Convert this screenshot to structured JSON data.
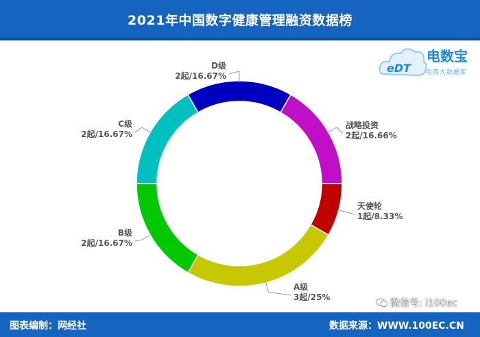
{
  "header": {
    "title": "2021年中国数字健康管理融资数据榜"
  },
  "logo": {
    "name": "电数宝",
    "subtitle": "电商大数据库",
    "mark": "eDT"
  },
  "footer": {
    "left": "图表编制：网经社",
    "right": "数据来源：WWW.100EC.CN"
  },
  "watermark": {
    "text": "微信号: i100ec"
  },
  "chart_data": {
    "type": "pie",
    "donut": true,
    "title": "",
    "slices": [
      {
        "name": "战略投资",
        "count_label": "2起/16.66%",
        "value": 16.66,
        "color": "#c010c6"
      },
      {
        "name": "天使轮",
        "count_label": "1起/8.33%",
        "value": 8.33,
        "color": "#c00000"
      },
      {
        "name": "A级",
        "count_label": "3起/25%",
        "value": 25,
        "color": "#c8c800"
      },
      {
        "name": "B级",
        "count_label": "2起/16.67%",
        "value": 16.67,
        "color": "#00c800"
      },
      {
        "name": "C级",
        "count_label": "2起/16.67%",
        "value": 16.67,
        "color": "#00c0c0"
      },
      {
        "name": "D级",
        "count_label": "2起/16.67%",
        "value": 16.67,
        "color": "#0000c0"
      }
    ]
  }
}
